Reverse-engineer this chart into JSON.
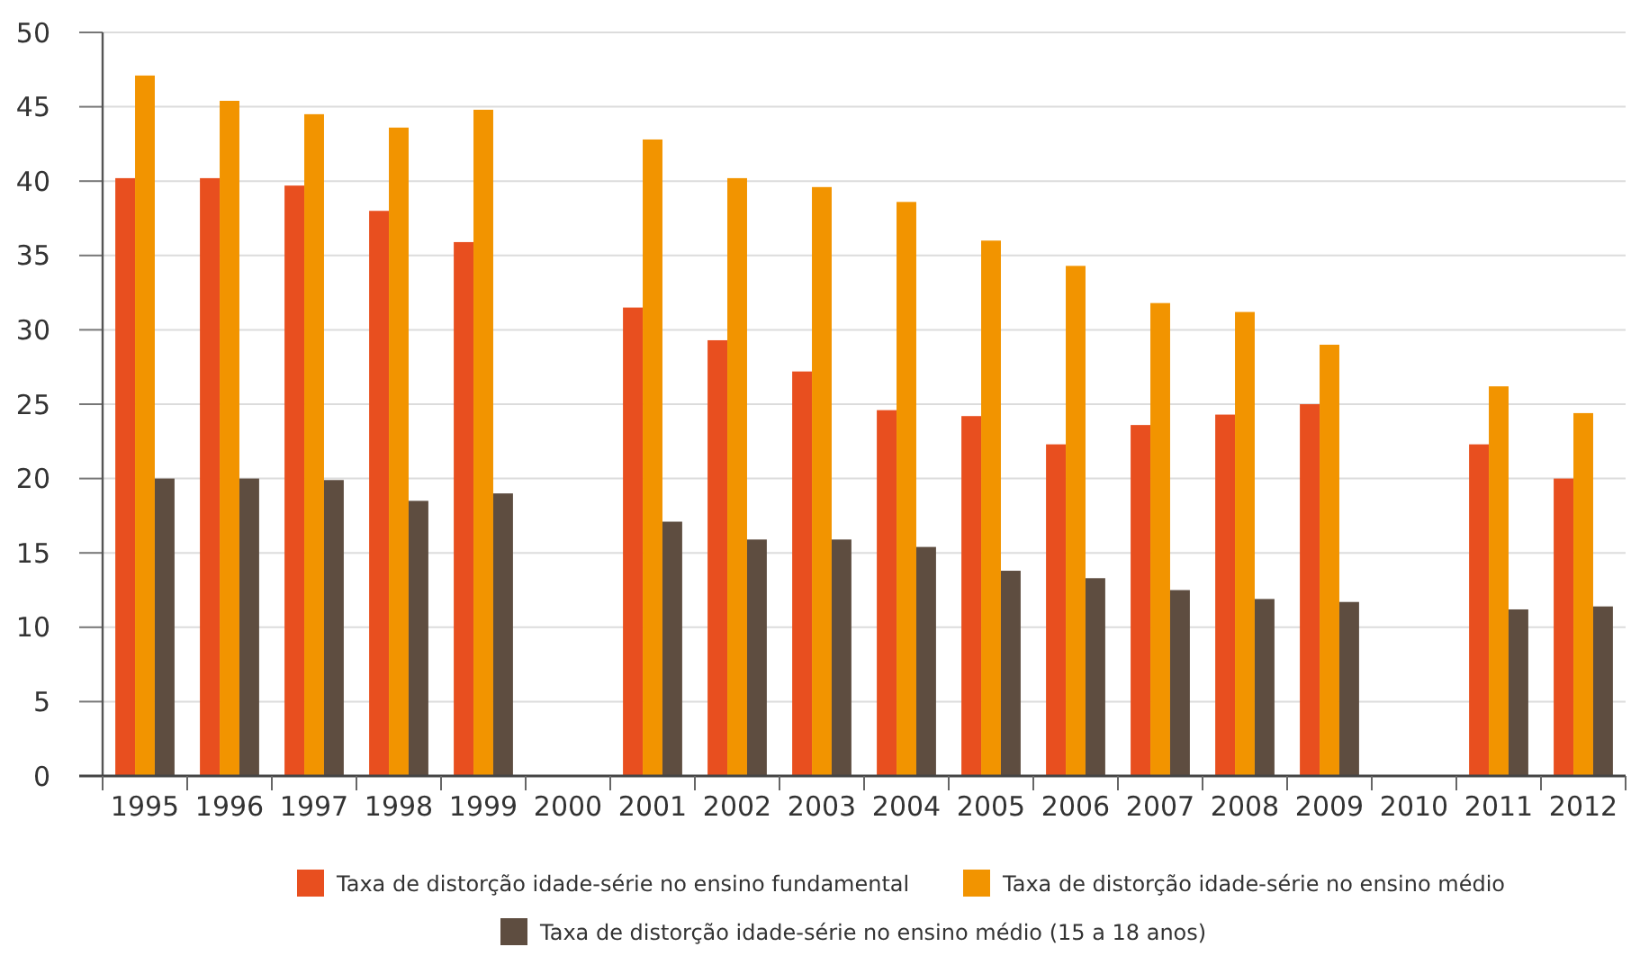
{
  "chart_data": {
    "type": "bar",
    "categories": [
      "1995",
      "1996",
      "1997",
      "1998",
      "1999",
      "2000",
      "2001",
      "2002",
      "2003",
      "2004",
      "2005",
      "2006",
      "2007",
      "2008",
      "2009",
      "2010",
      "2011",
      "2012"
    ],
    "series": [
      {
        "name": "Taxa de distorção idade-série no ensino fundamental",
        "color": "#e84f1f",
        "values": [
          40.2,
          40.2,
          39.7,
          38.0,
          35.9,
          null,
          31.5,
          29.3,
          27.2,
          24.6,
          24.2,
          22.3,
          23.6,
          24.3,
          25.0,
          null,
          22.3,
          20.0
        ]
      },
      {
        "name": "Taxa de distorção idade-série no ensino médio",
        "color": "#f29400",
        "values": [
          47.1,
          45.4,
          44.5,
          43.6,
          44.8,
          null,
          42.8,
          40.2,
          39.6,
          38.6,
          36.0,
          34.3,
          31.8,
          31.2,
          29.0,
          null,
          26.2,
          24.4
        ]
      },
      {
        "name": "Taxa de distorção idade-série no ensino médio (15 a 18 anos)",
        "color": "#5e4d40",
        "values": [
          20.0,
          20.0,
          19.9,
          18.5,
          19.0,
          null,
          17.1,
          15.9,
          15.9,
          15.4,
          13.8,
          13.3,
          12.5,
          11.9,
          11.7,
          null,
          11.2,
          11.4
        ]
      }
    ],
    "ylim": [
      0,
      50
    ],
    "yticks": [
      0,
      5,
      10,
      15,
      20,
      25,
      30,
      35,
      40,
      45,
      50
    ],
    "grid": "y",
    "legend": "bottom"
  }
}
